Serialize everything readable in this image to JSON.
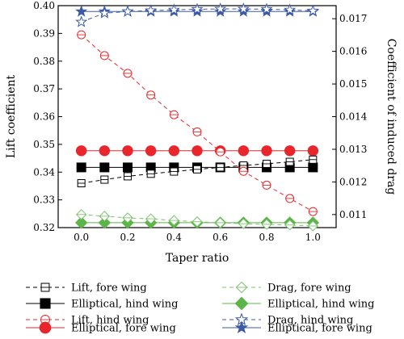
{
  "chart_data": {
    "type": "line",
    "xlabel": "Taper ratio",
    "ylabel_left": "Lift coefficient",
    "ylabel_right": "Coefficient of induced drag",
    "xlim": [
      -0.1,
      1.1
    ],
    "ylim_left": [
      0.32,
      0.4
    ],
    "ylim_right": [
      0.0106,
      0.0174
    ],
    "x_ticks": [
      0.0,
      0.2,
      0.4,
      0.6,
      0.8,
      1.0
    ],
    "x_tick_labels": [
      "0.0",
      "0.2",
      "0.4",
      "0.6",
      "0.8",
      "1.0"
    ],
    "y_left_ticks": [
      0.32,
      0.33,
      0.34,
      0.35,
      0.36,
      0.37,
      0.38,
      0.39,
      0.4
    ],
    "y_left_tick_labels": [
      "0.32",
      "0.33",
      "0.34",
      "0.35",
      "0.36",
      "0.37",
      "0.38",
      "0.39",
      "0.40"
    ],
    "y_right_ticks": [
      0.011,
      0.012,
      0.013,
      0.014,
      0.015,
      0.016,
      0.017
    ],
    "y_right_tick_labels": [
      "0.011",
      "0.012",
      "0.013",
      "0.014",
      "0.015",
      "0.016",
      "0.017"
    ],
    "x": [
      0.0,
      0.1,
      0.2,
      0.3,
      0.4,
      0.5,
      0.6,
      0.7,
      0.8,
      0.9,
      1.0
    ],
    "legend_placement": "bottom",
    "series": [
      {
        "name": "Lift, fore wing",
        "axis": "left",
        "color": "#000000",
        "dashed": true,
        "marker": "square-open",
        "values": [
          0.336,
          0.3373,
          0.3385,
          0.3394,
          0.3402,
          0.341,
          0.3417,
          0.3424,
          0.343,
          0.3437,
          0.3445
        ]
      },
      {
        "name": "Elliptical, hind wing",
        "axis": "left",
        "color": "#000000",
        "dashed": false,
        "marker": "square-filled",
        "values": [
          0.3417,
          0.3417,
          0.3417,
          0.3417,
          0.3417,
          0.3417,
          0.3417,
          0.3417,
          0.3417,
          0.3417,
          0.3417
        ]
      },
      {
        "name": "Lift, hind wing",
        "axis": "left",
        "color": "#e8262b",
        "dashed": true,
        "marker": "circle-open",
        "values": [
          0.3895,
          0.382,
          0.3756,
          0.3678,
          0.3607,
          0.3545,
          0.3473,
          0.3403,
          0.3353,
          0.3305,
          0.3258
        ]
      },
      {
        "name": "Elliptical, fore wing",
        "axis": "left",
        "color": "#e8262b",
        "dashed": false,
        "marker": "circle-filled",
        "values": [
          0.3477,
          0.3477,
          0.3477,
          0.3477,
          0.3477,
          0.3477,
          0.3477,
          0.3477,
          0.3477,
          0.3477,
          0.3477
        ]
      },
      {
        "name": "Drag, fore wing",
        "axis": "right",
        "color": "#7cc36d",
        "dashed": true,
        "marker": "diamond-open",
        "values": [
          0.011,
          0.01095,
          0.0109,
          0.01087,
          0.01082,
          0.01078,
          0.01075,
          0.01072,
          0.0107,
          0.01068,
          0.01065
        ]
      },
      {
        "name": "Elliptical, hind wing",
        "axis": "right",
        "color": "#5bb548",
        "dashed": false,
        "marker": "diamond-filled",
        "values": [
          0.01075,
          0.01075,
          0.01075,
          0.01075,
          0.01075,
          0.01075,
          0.01075,
          0.01075,
          0.01075,
          0.01075,
          0.01075
        ]
      },
      {
        "name": "Drag, hind wing",
        "axis": "right",
        "color": "#3c5aa8",
        "dashed": true,
        "marker": "star-open",
        "values": [
          0.0169,
          0.01717,
          0.01722,
          0.01725,
          0.01727,
          0.01729,
          0.0173,
          0.0173,
          0.01729,
          0.01727,
          0.01724
        ]
      },
      {
        "name": "Elliptical, fore wing",
        "axis": "right",
        "color": "#3c5aa8",
        "dashed": false,
        "marker": "star-filled",
        "values": [
          0.01722,
          0.01722,
          0.01722,
          0.01722,
          0.01722,
          0.01722,
          0.01722,
          0.01722,
          0.01722,
          0.01722,
          0.01722
        ]
      }
    ]
  }
}
